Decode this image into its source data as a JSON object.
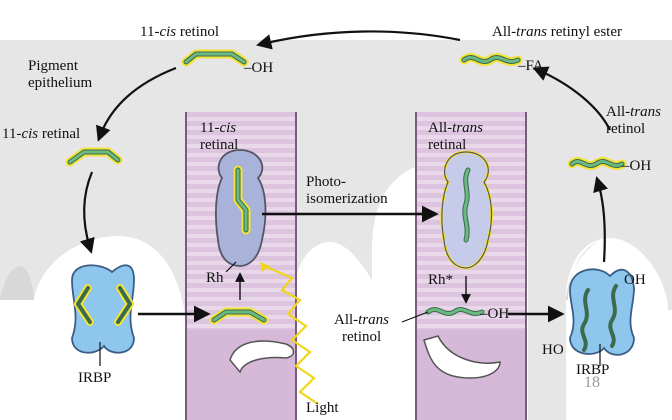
{
  "labels": {
    "cis_retinol_top": [
      "11-",
      "cis",
      " retinol"
    ],
    "oh_top": "–OH",
    "trans_ester": [
      "All-",
      "trans",
      " retinyl ester"
    ],
    "fa": "–FA",
    "pigment_epithelium": [
      "Pigment",
      "epithelium"
    ],
    "cis_retinal_left": [
      "11-",
      "cis",
      " retinal"
    ],
    "cis_retinal_rod": [
      "11-",
      "cis",
      "retinal"
    ],
    "trans_retinal_rod": [
      "All-",
      "trans",
      "retinal"
    ],
    "trans_retinol_right": [
      "All-",
      "trans",
      "retinol"
    ],
    "oh_right": "–OH",
    "photoisomerization": [
      "Photo-",
      "isomerization"
    ],
    "rh": "Rh",
    "rh_star": "Rh*",
    "trans_retinol_bottom": [
      "All-",
      "trans",
      "retinol"
    ],
    "oh_bottom": "–OH",
    "irbp_left": "IRBP",
    "irbp_right": "IRBP",
    "oh_irbp": "OH",
    "ho_irbp": "HO",
    "light": "Light",
    "page_number": "18"
  },
  "colors": {
    "membrane_gray": "#e6e6e6",
    "rod_pink": "#dcc3de",
    "rod_stripe": "#e9d7ea",
    "rod_body": "#cfb2d3",
    "rhodopsin_blue": "#a9b2d8",
    "rhodopsin_active": "#c5cbe8",
    "irbp_blue": "#8fc6ee",
    "retinoid_green": "#5fae78",
    "retinoid_halo": "#f3e23a",
    "light_yellow": "#f2d51a"
  }
}
